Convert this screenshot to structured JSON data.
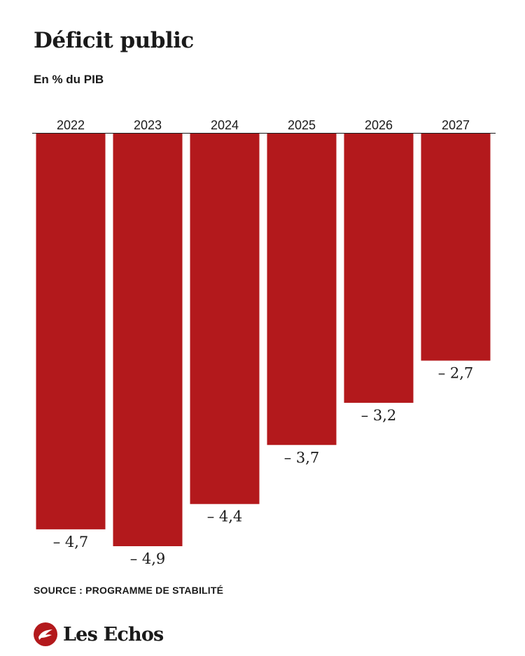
{
  "title": "Déficit public",
  "subtitle": "En % du PIB",
  "source": "SOURCE : PROGRAMME DE STABILITÉ",
  "brand": {
    "name": "Les Echos",
    "logo_icon": "les-echos-logo-icon"
  },
  "colors": {
    "bar": "#b3191c",
    "axis": "#1a1a1a",
    "text": "#1a1a1a"
  },
  "chart_data": {
    "type": "bar",
    "categories": [
      "2022",
      "2023",
      "2024",
      "2025",
      "2026",
      "2027"
    ],
    "values": [
      -4.7,
      -4.9,
      -4.4,
      -3.7,
      -3.2,
      -2.7
    ],
    "value_labels": [
      "– 4,7",
      "– 4,9",
      "– 4,4",
      "– 3,7",
      "– 3,2",
      "– 2,7"
    ],
    "title": "Déficit public",
    "subtitle": "En % du PIB",
    "ylim": [
      -4.9,
      0
    ],
    "grid": false,
    "legend": "none"
  }
}
